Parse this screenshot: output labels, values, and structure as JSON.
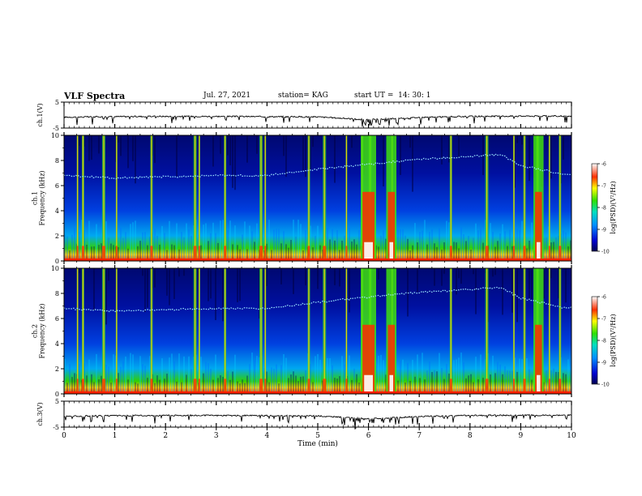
{
  "header": {
    "title": "VLF Spectra",
    "date": "Jul. 27, 2021",
    "station": "station= KAG",
    "start": "start UT =  14: 30: 1"
  },
  "colorbar": {
    "ticks": [
      "-6",
      "-7",
      "-8",
      "-9",
      "-10"
    ],
    "label": "log(PSD)(V²/Hz)"
  },
  "chart_data": [
    {
      "type": "line",
      "title": "",
      "ylabel": "ch.1(V)",
      "ylim": [
        -5,
        5
      ],
      "yticks": [
        "5",
        "-5"
      ],
      "x": [
        0,
        1,
        2,
        3,
        4,
        5,
        6,
        7,
        8,
        9,
        10
      ],
      "series": [
        {
          "values": [
            -0.8,
            -0.6,
            -0.5,
            -0.5,
            -0.6,
            -0.7,
            -1.8,
            -0.9,
            -0.5,
            -0.4,
            -0.4
          ]
        }
      ]
    },
    {
      "type": "heatmap",
      "title": "",
      "ylabel": "ch.1\nFrequency (kHz)",
      "ylim": [
        0,
        10
      ],
      "yticks": [
        "10",
        "8",
        "6",
        "4",
        "2",
        "0"
      ],
      "xlim": [
        0,
        10
      ],
      "colorbar_range": [
        -10,
        -6
      ],
      "emission_band_khz": {
        "x_min": [
          0,
          1,
          2,
          3,
          4,
          5,
          6,
          7,
          8,
          8.6,
          9,
          9.5,
          9.8
        ],
        "freq": [
          6.8,
          6.6,
          6.7,
          6.8,
          6.8,
          7.3,
          7.7,
          8.1,
          8.3,
          8.5,
          7.6,
          7.2,
          6.9
        ]
      },
      "broadband_spikes_min": [
        0.25,
        0.35,
        0.75,
        1.02,
        1.7,
        2.55,
        2.65,
        3.15,
        3.85,
        3.95,
        4.8,
        5.1,
        5.55,
        5.85,
        6.0,
        6.45,
        7.6,
        8.3,
        8.85,
        9.05,
        9.3,
        9.55,
        9.75
      ],
      "strong_bursts_min": [
        [
          5.85,
          6.15
        ],
        [
          6.35,
          6.55
        ],
        [
          9.25,
          9.45
        ]
      ]
    },
    {
      "type": "heatmap",
      "title": "",
      "ylabel": "ch.2\nFrequency (kHz)",
      "ylim": [
        0,
        10
      ],
      "yticks": [
        "10",
        "8",
        "6",
        "4",
        "2",
        "0"
      ],
      "xlim": [
        0,
        10
      ],
      "colorbar_range": [
        -10,
        -6
      ],
      "emission_band_khz": {
        "x_min": [
          0,
          1,
          2,
          3,
          4,
          5,
          6,
          7,
          8,
          8.6,
          9,
          9.5,
          9.8
        ],
        "freq": [
          6.8,
          6.6,
          6.7,
          6.8,
          6.8,
          7.3,
          7.7,
          8.1,
          8.3,
          8.5,
          7.6,
          7.2,
          6.9
        ]
      },
      "broadband_spikes_min": [
        0.25,
        0.35,
        0.75,
        1.02,
        1.7,
        2.55,
        2.65,
        3.15,
        3.85,
        3.95,
        4.8,
        5.1,
        5.55,
        5.85,
        6.0,
        6.45,
        7.6,
        8.3,
        8.85,
        9.05,
        9.3,
        9.55,
        9.75
      ],
      "strong_bursts_min": [
        [
          5.85,
          6.15
        ],
        [
          6.35,
          6.55
        ],
        [
          9.25,
          9.45
        ]
      ]
    },
    {
      "type": "line",
      "title": "",
      "ylabel": "ch.3(V)",
      "ylim": [
        -5,
        5
      ],
      "yticks": [
        "5",
        "-5"
      ],
      "xlabel": "Time (min)",
      "xlim": [
        0,
        10
      ],
      "xticks": [
        "0",
        "1",
        "2",
        "3",
        "4",
        "5",
        "6",
        "7",
        "8",
        "9",
        "10"
      ],
      "x": [
        0,
        1,
        2,
        3,
        4,
        5,
        6,
        7,
        8,
        9,
        10
      ],
      "series": [
        {
          "values": [
            -0.8,
            -0.6,
            -0.5,
            -0.5,
            -0.6,
            -0.7,
            -1.8,
            -0.9,
            -0.5,
            -0.4,
            -0.4
          ]
        }
      ]
    }
  ]
}
